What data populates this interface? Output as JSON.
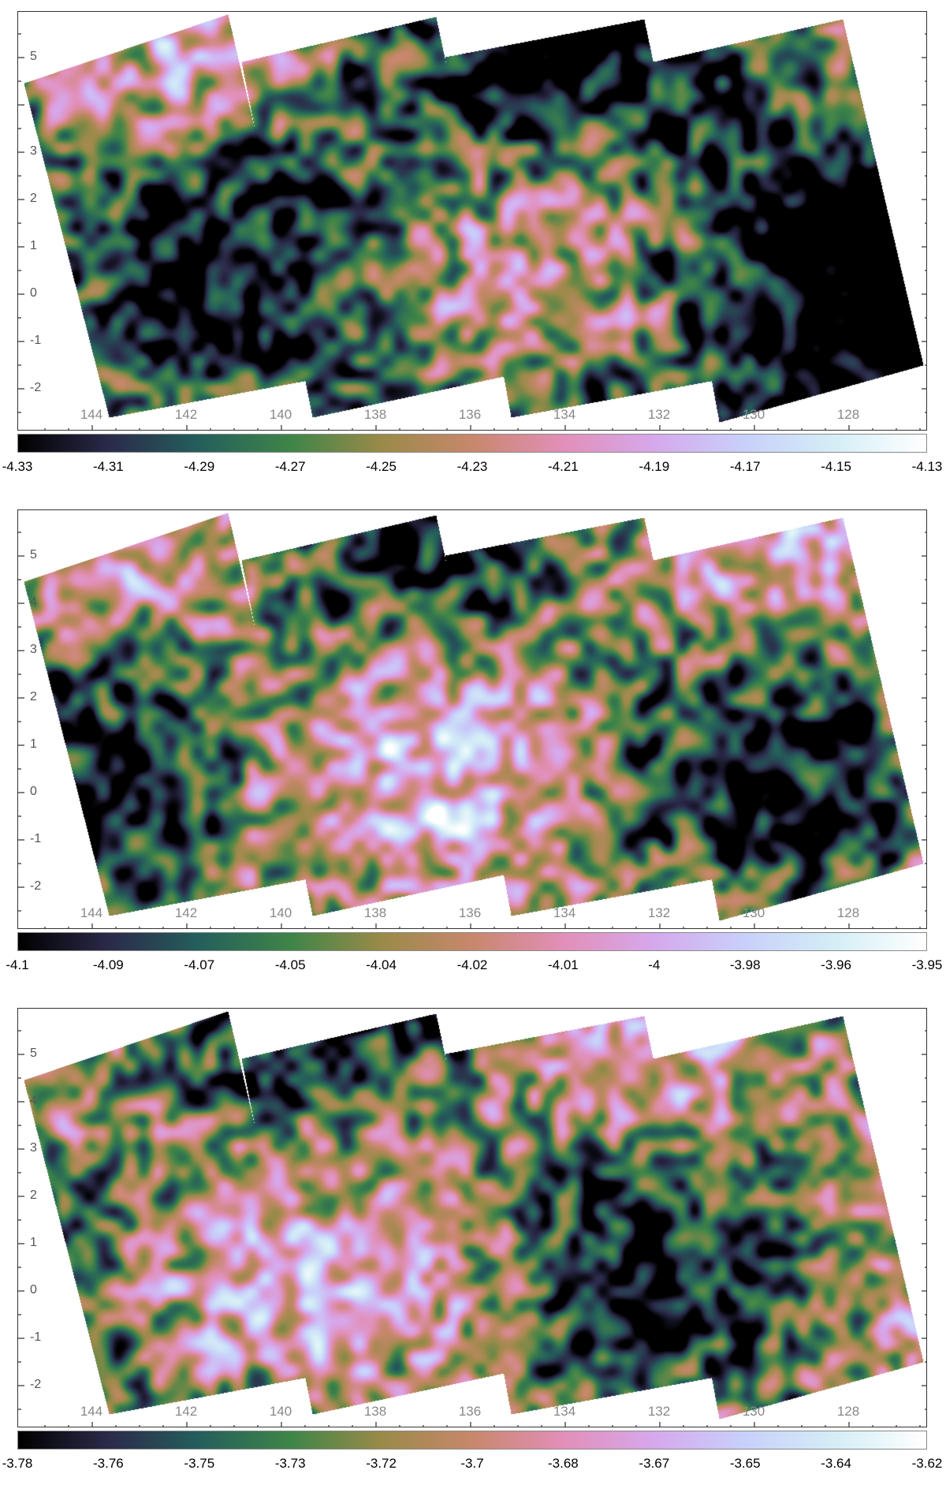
{
  "colormap": [
    "#000000",
    "#2b2a4a",
    "#245f5c",
    "#3e8548",
    "#9a8a48",
    "#c8876c",
    "#e28fb8",
    "#d6a8ec",
    "#c8d0fa",
    "#d4eef6",
    "#ffffff"
  ],
  "chart_data": [
    {
      "type": "heatmap",
      "x_ticks": [
        "144",
        "142",
        "140",
        "138",
        "136",
        "134",
        "132",
        "130",
        "128"
      ],
      "y_ticks": [
        "5",
        "3",
        "2",
        "1",
        "0",
        "-1",
        "-2"
      ],
      "colorbar_ticks": [
        "-4.33",
        "-4.31",
        "-4.29",
        "-4.27",
        "-4.25",
        "-4.23",
        "-4.21",
        "-4.19",
        "-4.17",
        "-4.15",
        "-4.13"
      ],
      "colorbar_range": [
        -4.33,
        -4.13
      ]
    },
    {
      "type": "heatmap",
      "x_ticks": [
        "144",
        "142",
        "140",
        "138",
        "136",
        "134",
        "132",
        "130",
        "128"
      ],
      "y_ticks": [
        "5",
        "4",
        "3",
        "2",
        "1",
        "0",
        "-1",
        "-2"
      ],
      "colorbar_ticks": [
        "-4.1",
        "-4.09",
        "-4.07",
        "-4.05",
        "-4.04",
        "-4.02",
        "-4.01",
        "-4",
        "-3.98",
        "-3.96",
        "-3.95"
      ],
      "colorbar_range": [
        -4.1,
        -3.95
      ]
    },
    {
      "type": "heatmap",
      "x_ticks": [
        "144",
        "142",
        "140",
        "138",
        "136",
        "134",
        "132",
        "130",
        "128"
      ],
      "y_ticks": [
        "5",
        "4",
        "3",
        "2",
        "1",
        "0",
        "-1",
        "-2"
      ],
      "colorbar_ticks": [
        "-3.78",
        "-3.76",
        "-3.75",
        "-3.73",
        "-3.72",
        "-3.7",
        "-3.68",
        "-3.67",
        "-3.65",
        "-3.64",
        "-3.62"
      ],
      "colorbar_range": [
        -3.78,
        -3.62
      ]
    }
  ]
}
